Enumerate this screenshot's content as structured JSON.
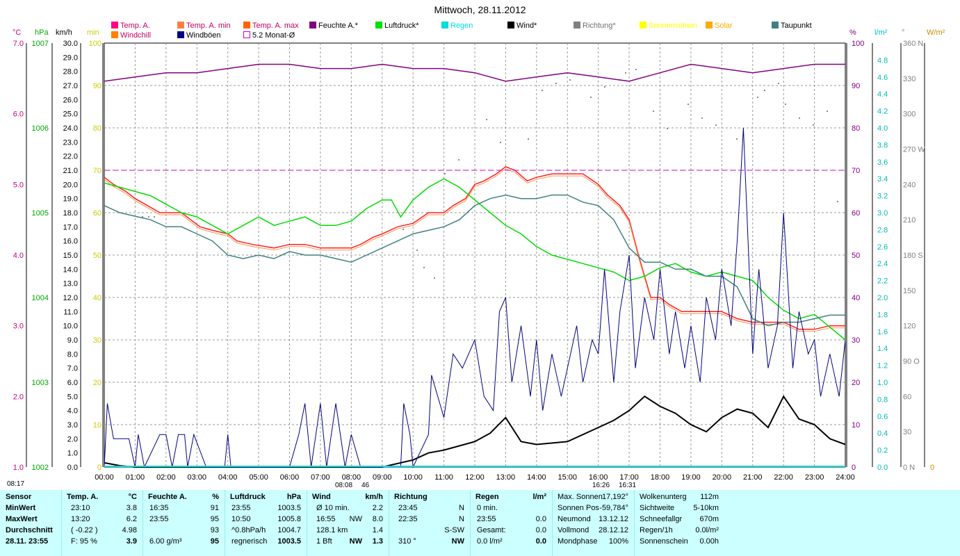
{
  "title": "Mittwoch, 28.11.2012",
  "legend": [
    {
      "label": "Temp. A.",
      "color": "#ff0080"
    },
    {
      "label": "Temp. A. min",
      "color": "#ff8040"
    },
    {
      "label": "Temp. A. max",
      "color": "#ff6600"
    },
    {
      "label": "Feuchte A.*",
      "color": "#800080"
    },
    {
      "label": "Luftdruck*",
      "color": "#00dd00"
    },
    {
      "label": "Regen",
      "color": "#00dddd"
    },
    {
      "label": "Wind*",
      "color": "#000000"
    },
    {
      "label": "Richtung*",
      "color": "#808080"
    },
    {
      "label": "Sonnenschein",
      "color": "#ffff00"
    },
    {
      "label": "Solar",
      "color": "#ffaa00"
    },
    {
      "label": "Taupunkt",
      "color": "#408080"
    },
    {
      "label": "Windchill",
      "color": "#ff8000"
    },
    {
      "label": "Windböen",
      "color": "#000080"
    },
    {
      "label": "5.2 Monat-Ø",
      "color": "#cc00cc"
    }
  ],
  "axes": {
    "c": {
      "unit": "°C",
      "ticks": [
        "7.0",
        "6.0",
        "5.0",
        "4.0",
        "3.0",
        "2.0",
        "1.0"
      ],
      "color": "#cc0080"
    },
    "hpa": {
      "unit": "hPa",
      "ticks": [
        "1007",
        "1006",
        "1005",
        "1004",
        "1003",
        "1002"
      ],
      "color": "#00aa00"
    },
    "kmh": {
      "unit": "km/h",
      "ticks": [
        "30.0",
        "29.0",
        "28.0",
        "27.0",
        "26.0",
        "25.0",
        "24.0",
        "23.0",
        "22.0",
        "21.0",
        "20.0",
        "19.0",
        "18.0",
        "17.0",
        "16.0",
        "15.0",
        "14.0",
        "13.0",
        "12.0",
        "11.0",
        "10.0",
        "9.0",
        "8.0",
        "7.0",
        "6.0",
        "5.0",
        "4.0",
        "3.0",
        "2.0",
        "1.0",
        "0.0"
      ],
      "color": "#000000"
    },
    "min": {
      "unit": "min",
      "color": "#cccc00"
    },
    "inner": {
      "ticks": [
        "100",
        "90",
        "80",
        "70",
        "60",
        "50",
        "40",
        "30",
        "20",
        "10",
        "0"
      ],
      "color": "#cccc00"
    },
    "pct": {
      "unit": "%",
      "ticks": [
        "100",
        "90",
        "80",
        "70",
        "60",
        "50",
        "40",
        "30",
        "20",
        "10",
        "0"
      ],
      "color": "#800080"
    },
    "lm2": {
      "unit": "l/m²",
      "ticks": [
        "4.8",
        "4.6",
        "4.4",
        "4.2",
        "4.0",
        "3.8",
        "3.6",
        "3.4",
        "3.2",
        "3.0",
        "2.8",
        "2.6",
        "2.4",
        "2.2",
        "2.0",
        "1.8",
        "1.6",
        "1.4",
        "1.2",
        "1.0",
        "0.8",
        "0.6",
        "0.4",
        "0.2",
        "0.0"
      ],
      "color": "#00bbbb"
    },
    "deg": {
      "unit": "°",
      "ticks": [
        "360 N",
        "330",
        "300",
        "270 W",
        "240",
        "210",
        "180 S",
        "150",
        "120",
        "90  O",
        "60",
        "30",
        "0  N"
      ],
      "color": "#808080"
    },
    "wm2": {
      "unit": "W/m²",
      "ticks": [
        "0"
      ],
      "color": "#cc8800"
    }
  },
  "chart_data": {
    "type": "line",
    "x_labels": [
      "00:00",
      "01:00",
      "02:00",
      "03:00",
      "04:00",
      "05:00",
      "06:00",
      "07:00",
      "08:00",
      "09:00",
      "10:00",
      "11:00",
      "12:00",
      "13:00",
      "14:00",
      "15:00",
      "16:00",
      "17:00",
      "18:00",
      "19:00",
      "20:00",
      "21:00",
      "22:00",
      "23:00",
      "24:00"
    ],
    "xlim": [
      0,
      24
    ],
    "series": [
      {
        "name": "Temp. A.",
        "unit": "°C",
        "color": "#ff2020",
        "x": [
          0,
          0.3,
          0.7,
          1,
          1.4,
          1.8,
          2.5,
          2.8,
          3.1,
          3.5,
          4,
          4.3,
          4.8,
          5.5,
          6,
          6.5,
          7,
          7.5,
          8,
          8.3,
          8.7,
          9,
          9.5,
          10,
          10.5,
          11,
          11.3,
          11.7,
          12,
          12.3,
          12.7,
          13,
          13.3,
          13.7,
          14,
          14.5,
          15,
          15.5,
          16,
          16.3,
          16.7,
          17,
          17.3,
          17.7,
          18,
          18.3,
          18.7,
          19,
          19.5,
          20,
          20.5,
          21,
          21.5,
          22,
          22.5,
          23,
          23.5,
          24
        ],
        "y": [
          5.1,
          5.0,
          4.9,
          4.8,
          4.7,
          4.6,
          4.6,
          4.5,
          4.4,
          4.35,
          4.3,
          4.2,
          4.15,
          4.1,
          4.15,
          4.15,
          4.1,
          4.1,
          4.1,
          4.15,
          4.25,
          4.3,
          4.4,
          4.45,
          4.6,
          4.6,
          4.7,
          4.8,
          5.0,
          5.05,
          5.15,
          5.25,
          5.2,
          5.05,
          5.1,
          5.15,
          5.15,
          5.15,
          5.0,
          4.85,
          4.7,
          4.5,
          4.0,
          3.4,
          3.4,
          3.3,
          3.2,
          3.2,
          3.2,
          3.2,
          3.1,
          3.05,
          3.05,
          3.05,
          2.95,
          2.95,
          3.0,
          3.0
        ]
      },
      {
        "name": "Feuchte A.*",
        "unit": "%",
        "color": "#800080",
        "x": [
          0,
          1,
          2,
          3,
          4,
          5,
          6,
          7,
          8,
          9,
          10,
          11,
          12,
          13,
          14,
          15,
          16,
          17,
          18,
          19,
          20,
          21,
          22,
          23,
          24
        ],
        "y": [
          91,
          92,
          93,
          93,
          94,
          95,
          95,
          94,
          94,
          95,
          94,
          94,
          93,
          91,
          92,
          93,
          92,
          91,
          93,
          95,
          94,
          93,
          94,
          95,
          95
        ]
      },
      {
        "name": "Luftdruck*",
        "unit": "hPa",
        "color": "#00dd00",
        "x": [
          0,
          0.5,
          1,
          1.5,
          2,
          2.5,
          3,
          3.5,
          4,
          4.5,
          5,
          5.5,
          6,
          6.5,
          7,
          7.5,
          8,
          8.5,
          9,
          9.3,
          9.6,
          10,
          10.5,
          11,
          11.5,
          12,
          12.5,
          13,
          13.5,
          14,
          14.5,
          15,
          15.5,
          16,
          16.5,
          17,
          17.5,
          18,
          18.5,
          19,
          19.5,
          20,
          20.5,
          21,
          21.5,
          22,
          22.5,
          23,
          23.5,
          24
        ],
        "y": [
          1005.35,
          1005.3,
          1005.25,
          1005.2,
          1005.1,
          1005.0,
          1004.95,
          1004.85,
          1004.75,
          1004.85,
          1004.95,
          1004.85,
          1004.9,
          1004.95,
          1004.85,
          1004.85,
          1004.9,
          1005.05,
          1005.15,
          1005.15,
          1004.95,
          1005.15,
          1005.3,
          1005.4,
          1005.3,
          1005.15,
          1005.0,
          1004.85,
          1004.75,
          1004.6,
          1004.5,
          1004.45,
          1004.4,
          1004.35,
          1004.3,
          1004.2,
          1004.25,
          1004.35,
          1004.4,
          1004.3,
          1004.25,
          1004.3,
          1004.25,
          1004.2,
          1004.0,
          1003.85,
          1003.75,
          1003.8,
          1003.65,
          1003.5
        ]
      },
      {
        "name": "Taupunkt",
        "unit": "°C",
        "color": "#408080",
        "x": [
          0,
          0.5,
          1,
          1.5,
          2,
          2.5,
          3,
          3.5,
          4,
          4.5,
          5,
          5.5,
          6,
          6.5,
          7,
          7.5,
          8,
          8.5,
          9,
          9.5,
          10,
          10.5,
          11,
          11.5,
          12,
          12.5,
          13,
          13.5,
          14,
          14.5,
          15,
          15.5,
          16,
          16.5,
          17,
          17.5,
          18,
          18.5,
          19,
          19.5,
          20,
          20.5,
          21,
          21.5,
          22,
          22.5,
          23,
          23.5,
          24
        ],
        "y": [
          4.7,
          4.6,
          4.55,
          4.5,
          4.4,
          4.4,
          4.3,
          4.2,
          4.0,
          3.95,
          4.0,
          3.95,
          4.05,
          4.0,
          4.0,
          3.95,
          3.9,
          4.0,
          4.1,
          4.2,
          4.3,
          4.35,
          4.4,
          4.5,
          4.7,
          4.8,
          4.85,
          4.8,
          4.8,
          4.85,
          4.85,
          4.75,
          4.7,
          4.5,
          4.1,
          3.9,
          3.9,
          3.8,
          3.8,
          3.7,
          3.7,
          3.55,
          3.1,
          3.0,
          3.05,
          3.05,
          3.1,
          3.15,
          3.15
        ]
      },
      {
        "name": "Wind*",
        "unit": "km/h",
        "color": "#000000",
        "x": [
          0,
          0.5,
          1,
          2,
          3,
          4,
          5,
          6,
          7,
          8,
          9,
          10,
          10.5,
          11,
          12,
          12.5,
          13,
          13.5,
          14,
          15,
          16,
          16.5,
          17,
          17.5,
          18,
          18.5,
          19,
          19.5,
          20,
          20.5,
          21,
          21.5,
          22,
          22.5,
          23,
          23.5,
          24
        ],
        "y": [
          0.3,
          0.1,
          0,
          0,
          0,
          0,
          0,
          0,
          0,
          0,
          0,
          0.5,
          1.0,
          1.2,
          1.8,
          2.4,
          3.5,
          1.8,
          1.6,
          1.8,
          2.8,
          3.3,
          4.0,
          5.0,
          4.3,
          3.8,
          3.0,
          2.5,
          3.5,
          4.1,
          3.8,
          2.8,
          5.0,
          3.4,
          3.0,
          2.0,
          1.6
        ]
      },
      {
        "name": "Windböen",
        "unit": "km/h",
        "color": "#000080",
        "x": [
          0,
          0.1,
          0.3,
          0.8,
          1,
          1.1,
          1.3,
          1.8,
          2,
          2.2,
          2.4,
          2.6,
          2.7,
          2.9,
          3.3,
          3.6,
          3.9,
          4,
          4.1,
          4.5,
          5.5,
          6,
          6.3,
          6.5,
          6.7,
          7,
          7.2,
          7.5,
          7.8,
          8,
          8.3,
          8.6,
          9,
          9.6,
          9.7,
          9.9,
          10,
          10.5,
          10.6,
          11,
          11.3,
          11.6,
          12,
          12.3,
          12.6,
          12.8,
          13,
          13.2,
          13.5,
          13.8,
          14,
          14.2,
          14.5,
          14.8,
          15,
          15.3,
          15.5,
          15.8,
          16,
          16.2,
          16.5,
          16.7,
          17,
          17.2,
          17.5,
          17.8,
          18,
          18.3,
          18.5,
          18.8,
          19,
          19.3,
          19.5,
          19.8,
          20,
          20.3,
          20.5,
          20.7,
          21,
          21.2,
          21.5,
          21.8,
          22,
          22.3,
          22.5,
          22.8,
          23,
          23.2,
          23.5,
          23.8,
          24
        ],
        "y": [
          0,
          4.5,
          2,
          2,
          0,
          2.3,
          0,
          2.3,
          2.3,
          0,
          2.3,
          2.3,
          0,
          2.3,
          0,
          0,
          0,
          2.3,
          0,
          0,
          0,
          0,
          2.3,
          4.5,
          0,
          4.5,
          0,
          4.5,
          0,
          2.3,
          0,
          0,
          0,
          0,
          4.5,
          2.3,
          0,
          2.3,
          6.5,
          3.5,
          8,
          7,
          9,
          5,
          4,
          11,
          12,
          6,
          10,
          5,
          9,
          4,
          8,
          5,
          7,
          10,
          6,
          9,
          8,
          14,
          6,
          11,
          15,
          7,
          12,
          9,
          14,
          8,
          11,
          7,
          10,
          6,
          12,
          9,
          14,
          10,
          16,
          24,
          8,
          14,
          7,
          10,
          18,
          7,
          11,
          8,
          9,
          5,
          8,
          5,
          9
        ]
      },
      {
        "name": "Monat-Ø",
        "unit": "%",
        "color": "#cc00cc",
        "x": [
          0,
          24
        ],
        "y": [
          70,
          70
        ]
      }
    ],
    "axis_labels": {
      "left": [
        "°C",
        "hPa",
        "km/h",
        "min"
      ],
      "right": [
        "%",
        "l/m²",
        "°",
        "W/m²"
      ]
    },
    "sun_markers": [
      "08:08",
      "46",
      "16:26",
      "16:31"
    ]
  },
  "start_marker": "08:17",
  "footer": {
    "sensor": {
      "head": "Sensor",
      "rows": [
        "MinWert",
        "MaxWert",
        "Durchschnitt",
        "28.11. 23:55"
      ]
    },
    "temp": {
      "head": "Temp. A.",
      "unit": "°C",
      "rows": [
        [
          "23:10",
          "3.8"
        ],
        [
          "13:20",
          "6.2"
        ],
        [
          "( -0.22 )",
          "4.98"
        ],
        [
          "F: 95 %",
          "3.9"
        ]
      ]
    },
    "feuchte": {
      "head": "Feuchte A.",
      "unit": "%",
      "rows": [
        [
          "16:35",
          "91"
        ],
        [
          "23:55",
          "95"
        ],
        [
          "",
          "93"
        ],
        [
          "6.00 g/m³",
          "95"
        ]
      ]
    },
    "druck": {
      "head": "Luftdruck",
      "unit": "hPa",
      "rows": [
        [
          "23:55",
          "1003.5"
        ],
        [
          "10:50",
          "1005.8"
        ],
        [
          "^0.8hPa/h",
          "1004.7"
        ],
        [
          "regnerisch",
          "1003.5"
        ]
      ]
    },
    "wind": {
      "head": "Wind",
      "unit": "km/h",
      "rows": [
        [
          "Ø 10 min.",
          "",
          "2.2"
        ],
        [
          "16:55",
          "NW",
          "8.0"
        ],
        [
          "128.1 km",
          "",
          "1.4"
        ],
        [
          "1 Bft",
          "NW",
          "1.3"
        ]
      ]
    },
    "richtung": {
      "head": "Richtung",
      "rows": [
        [
          "23:45",
          "N"
        ],
        [
          "22:35",
          "N"
        ],
        [
          "",
          "S-SW"
        ],
        [
          "310 °",
          "NW"
        ]
      ]
    },
    "regen": {
      "head": "Regen",
      "unit": "l/m²",
      "rows": [
        [
          "0 min.",
          ""
        ],
        [
          "23:55",
          "0.0"
        ],
        [
          "Gesamt:",
          "0.0"
        ],
        [
          "0.0 l/m²",
          "0.0"
        ]
      ]
    },
    "astro": [
      [
        "Max. Sonnen",
        "17,192°"
      ],
      [
        "Sonnen Pos",
        "-59,784°"
      ],
      [
        "Neumond",
        "13.12.12"
      ],
      [
        "Vollmond",
        "28.12.12"
      ],
      [
        "Mondphase",
        "100%"
      ]
    ],
    "misc": [
      [
        "Wolkenunterg",
        "112m"
      ],
      [
        "Sichtweite",
        "5-10km"
      ],
      [
        "Schneefallgr",
        "670m"
      ],
      [
        "Regen/1h",
        "0.0l/m²"
      ],
      [
        "Sonnenschein",
        "0.00h"
      ]
    ]
  }
}
